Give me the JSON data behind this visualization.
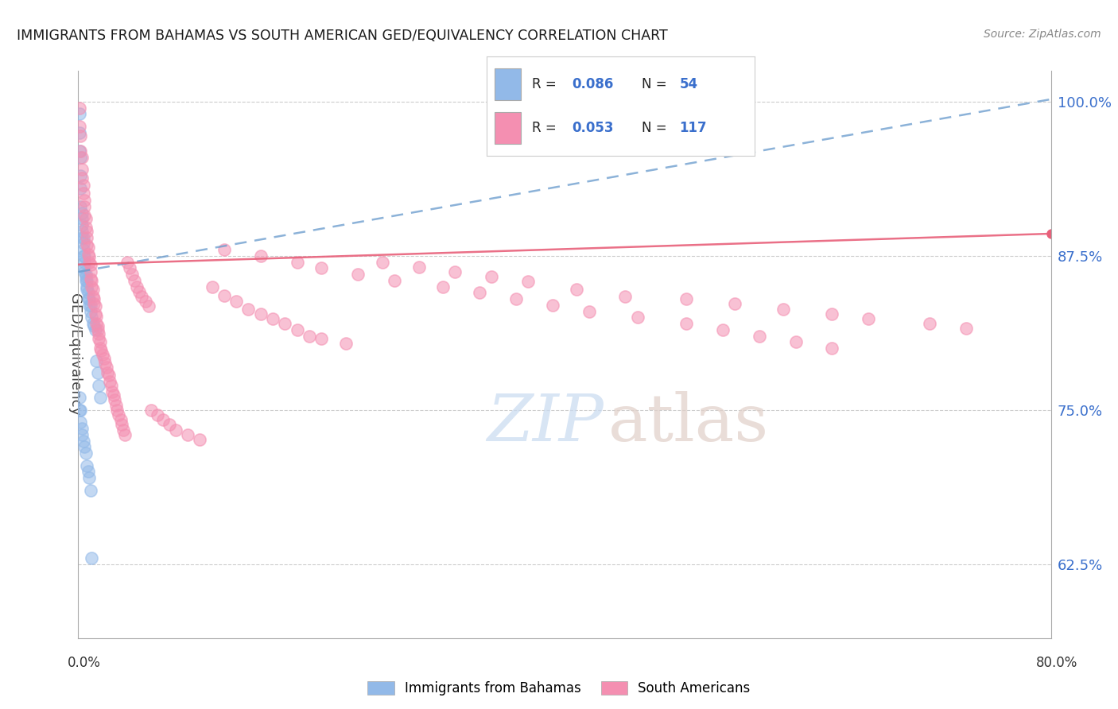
{
  "title": "IMMIGRANTS FROM BAHAMAS VS SOUTH AMERICAN GED/EQUIVALENCY CORRELATION CHART",
  "source": "Source: ZipAtlas.com",
  "ylabel": "GED/Equivalency",
  "right_ytick_labels": [
    "62.5%",
    "75.0%",
    "87.5%",
    "100.0%"
  ],
  "right_ytick_vals": [
    0.625,
    0.75,
    0.875,
    1.0
  ],
  "legend_label1": "Immigrants from Bahamas",
  "legend_label2": "South Americans",
  "R1": "0.086",
  "N1": "54",
  "R2": "0.053",
  "N2": "117",
  "title_color": "#1a1a1a",
  "source_color": "#888888",
  "blue_color": "#92b9e8",
  "pink_color": "#f48fb1",
  "blue_line_color": "#6699cc",
  "pink_line_color": "#e8607a",
  "right_axis_color": "#3a6fcc",
  "watermark_zip_color": "#c5d8f0",
  "watermark_atlas_color": "#d8c8c0",
  "xmin": 0.0,
  "xmax": 0.8,
  "ymin": 0.565,
  "ymax": 1.025,
  "blue_trend_x": [
    0.0,
    0.8
  ],
  "blue_trend_y": [
    0.862,
    1.002
  ],
  "pink_trend_x": [
    0.0,
    0.8
  ],
  "pink_trend_y": [
    0.868,
    0.893
  ],
  "bahamas_x": [
    0.001,
    0.001,
    0.001,
    0.002,
    0.002,
    0.002,
    0.002,
    0.003,
    0.003,
    0.003,
    0.003,
    0.003,
    0.004,
    0.004,
    0.004,
    0.004,
    0.005,
    0.005,
    0.005,
    0.005,
    0.006,
    0.006,
    0.006,
    0.007,
    0.007,
    0.007,
    0.008,
    0.008,
    0.009,
    0.009,
    0.01,
    0.01,
    0.011,
    0.012,
    0.013,
    0.014,
    0.015,
    0.016,
    0.017,
    0.018,
    0.001,
    0.001,
    0.002,
    0.002,
    0.003,
    0.003,
    0.004,
    0.005,
    0.006,
    0.007,
    0.008,
    0.009,
    0.01,
    0.011
  ],
  "bahamas_y": [
    0.99,
    0.975,
    0.96,
    0.955,
    0.94,
    0.93,
    0.915,
    0.91,
    0.905,
    0.9,
    0.895,
    0.89,
    0.89,
    0.885,
    0.88,
    0.875,
    0.875,
    0.87,
    0.865,
    0.862,
    0.86,
    0.858,
    0.855,
    0.855,
    0.85,
    0.848,
    0.845,
    0.84,
    0.84,
    0.835,
    0.835,
    0.83,
    0.825,
    0.82,
    0.818,
    0.815,
    0.79,
    0.78,
    0.77,
    0.76,
    0.76,
    0.75,
    0.75,
    0.74,
    0.735,
    0.73,
    0.725,
    0.72,
    0.715,
    0.705,
    0.7,
    0.695,
    0.685,
    0.63
  ],
  "sa_x": [
    0.001,
    0.001,
    0.002,
    0.002,
    0.003,
    0.003,
    0.003,
    0.004,
    0.004,
    0.005,
    0.005,
    0.005,
    0.006,
    0.006,
    0.007,
    0.007,
    0.007,
    0.008,
    0.008,
    0.009,
    0.009,
    0.01,
    0.01,
    0.01,
    0.011,
    0.011,
    0.012,
    0.012,
    0.013,
    0.013,
    0.014,
    0.014,
    0.015,
    0.015,
    0.016,
    0.016,
    0.017,
    0.017,
    0.018,
    0.018,
    0.019,
    0.02,
    0.021,
    0.022,
    0.023,
    0.024,
    0.025,
    0.026,
    0.027,
    0.028,
    0.029,
    0.03,
    0.031,
    0.032,
    0.033,
    0.035,
    0.036,
    0.037,
    0.038,
    0.04,
    0.042,
    0.044,
    0.046,
    0.048,
    0.05,
    0.052,
    0.055,
    0.058,
    0.06,
    0.065,
    0.07,
    0.075,
    0.08,
    0.09,
    0.1,
    0.11,
    0.12,
    0.13,
    0.14,
    0.15,
    0.16,
    0.17,
    0.18,
    0.19,
    0.2,
    0.22,
    0.25,
    0.28,
    0.31,
    0.34,
    0.37,
    0.41,
    0.45,
    0.5,
    0.54,
    0.58,
    0.62,
    0.65,
    0.7,
    0.73,
    0.12,
    0.15,
    0.18,
    0.2,
    0.23,
    0.26,
    0.3,
    0.33,
    0.36,
    0.39,
    0.42,
    0.46,
    0.5,
    0.53,
    0.56,
    0.59,
    0.62
  ],
  "sa_y": [
    0.995,
    0.98,
    0.972,
    0.96,
    0.955,
    0.945,
    0.938,
    0.932,
    0.926,
    0.92,
    0.915,
    0.908,
    0.905,
    0.898,
    0.895,
    0.89,
    0.884,
    0.882,
    0.876,
    0.874,
    0.87,
    0.868,
    0.862,
    0.856,
    0.855,
    0.85,
    0.848,
    0.842,
    0.84,
    0.836,
    0.834,
    0.828,
    0.826,
    0.82,
    0.818,
    0.815,
    0.812,
    0.808,
    0.805,
    0.8,
    0.798,
    0.795,
    0.792,
    0.788,
    0.785,
    0.78,
    0.778,
    0.773,
    0.77,
    0.765,
    0.762,
    0.758,
    0.754,
    0.75,
    0.746,
    0.742,
    0.738,
    0.734,
    0.73,
    0.87,
    0.865,
    0.86,
    0.855,
    0.85,
    0.846,
    0.842,
    0.838,
    0.834,
    0.75,
    0.746,
    0.742,
    0.738,
    0.734,
    0.73,
    0.726,
    0.85,
    0.843,
    0.838,
    0.832,
    0.828,
    0.824,
    0.82,
    0.815,
    0.81,
    0.808,
    0.804,
    0.87,
    0.866,
    0.862,
    0.858,
    0.854,
    0.848,
    0.842,
    0.84,
    0.836,
    0.832,
    0.828,
    0.824,
    0.82,
    0.816,
    0.88,
    0.875,
    0.87,
    0.865,
    0.86,
    0.855,
    0.85,
    0.845,
    0.84,
    0.835,
    0.83,
    0.825,
    0.82,
    0.815,
    0.81,
    0.805,
    0.8
  ]
}
